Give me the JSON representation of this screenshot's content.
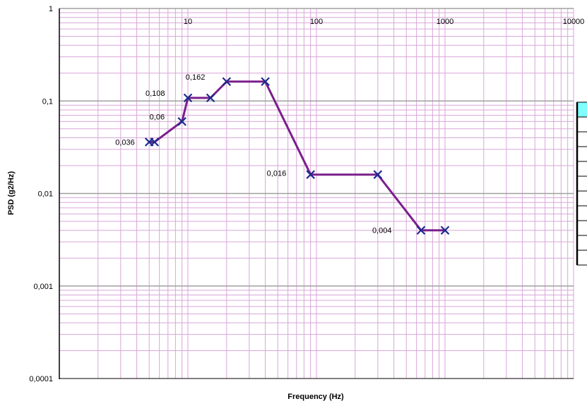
{
  "chart_data": {
    "type": "line",
    "xscale": "log",
    "yscale": "log",
    "xlim": [
      1,
      10000
    ],
    "ylim": [
      0.0001,
      1
    ],
    "xlabel": "Frequency (Hz)",
    "ylabel": "PSD (g2/Hz)",
    "grid": true,
    "x_tick_labels": [
      "10",
      "100",
      "1000",
      "10000"
    ],
    "y_tick_labels": [
      "1",
      "0,1",
      "0,01",
      "0,001",
      "0,0001"
    ],
    "series": [
      {
        "x": [
          5,
          5.5,
          9,
          10,
          15,
          20,
          40,
          90,
          300,
          650,
          1000
        ],
        "y": [
          0.036,
          0.036,
          0.06,
          0.108,
          0.108,
          0.162,
          0.162,
          0.016,
          0.016,
          0.004,
          0.004
        ]
      }
    ],
    "data_labels": [
      {
        "x": 5,
        "y": 0.036,
        "text": "0,036"
      },
      {
        "x": 9,
        "y": 0.06,
        "text": "0,06"
      },
      {
        "x": 10,
        "y": 0.108,
        "text": "0,108"
      },
      {
        "x": 20,
        "y": 0.162,
        "text": "0,162"
      },
      {
        "x": 90,
        "y": 0.016,
        "text": "0,016"
      },
      {
        "x": 650,
        "y": 0.004,
        "text": "0,004"
      }
    ],
    "colors": {
      "grid_minor": "#d9a6d9",
      "grid_major": "#a0a0a0",
      "line": "#7b1f8c",
      "marker": "#1a2a8c",
      "table_header": "#7fffff"
    },
    "side_table_rows": 10
  }
}
